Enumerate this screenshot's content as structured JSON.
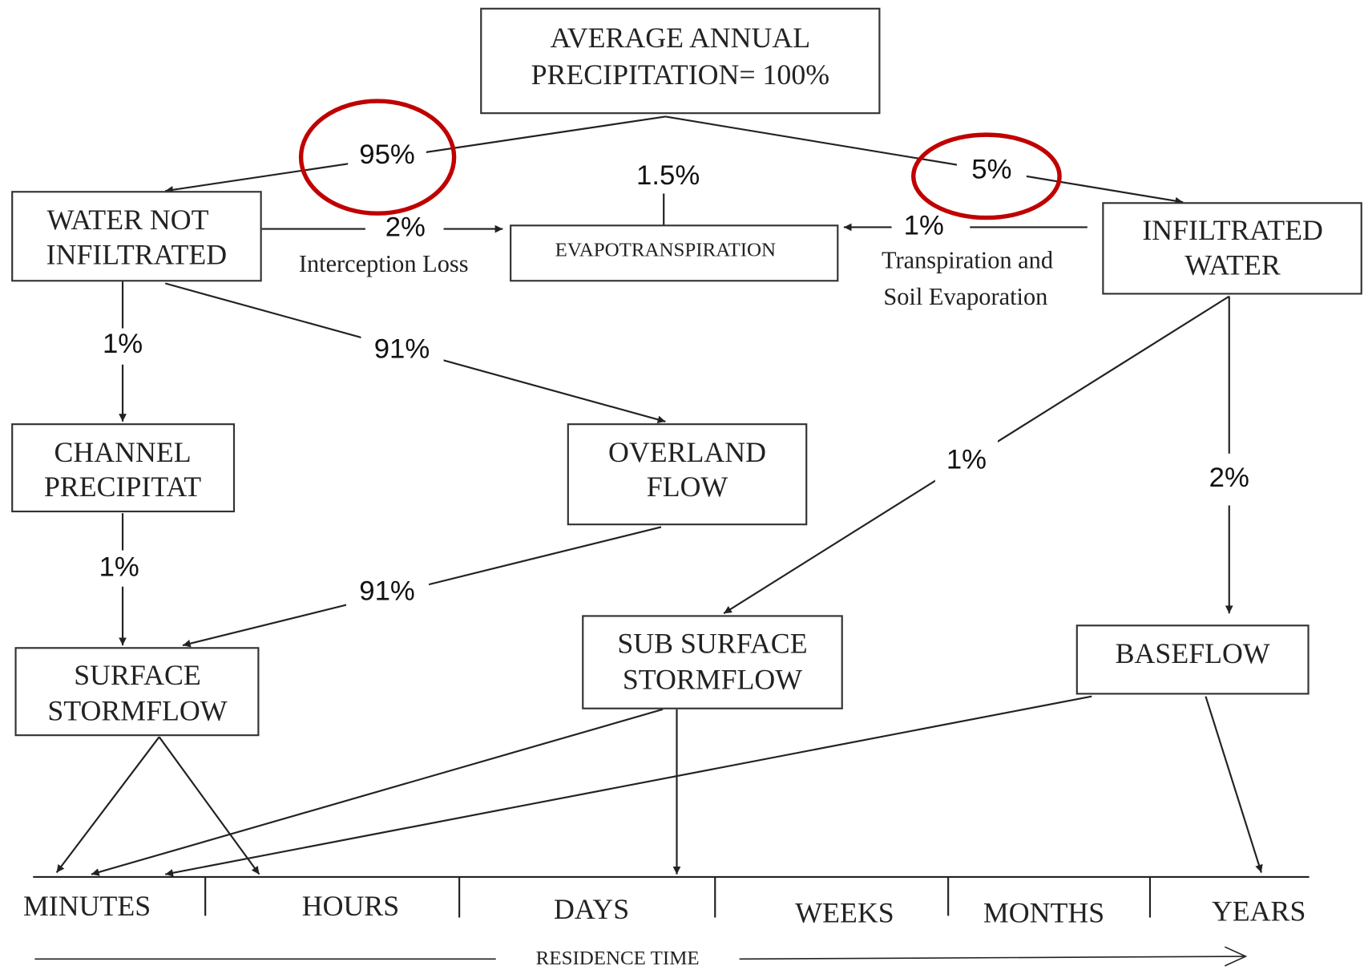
{
  "nodes": [
    {
      "lines": [
        "AVERAGE ANNUAL",
        "PRECIPITATION= 100%"
      ]
    },
    {
      "lines": [
        "WATER NOT",
        "INFILTRATED"
      ]
    },
    {
      "lines": [
        "EVAPOTRANSPIRATION"
      ]
    },
    {
      "lines": [
        "INFILTRATED",
        "WATER"
      ]
    },
    {
      "lines": [
        "CHANNEL",
        "PRECIPITAT"
      ]
    },
    {
      "lines": [
        "OVERLAND",
        "FLOW"
      ]
    },
    {
      "lines": [
        "SUB SURFACE",
        "STORMFLOW"
      ]
    },
    {
      "lines": [
        "BASEFLOW"
      ]
    },
    {
      "lines": [
        "SURFACE",
        "STORMFLOW"
      ]
    }
  ],
  "edges": [
    {
      "label": "95%"
    },
    {
      "label": "5%"
    },
    {
      "label": "1.5%"
    },
    {
      "label": "2%",
      "note": [
        "Interception Loss"
      ]
    },
    {
      "label": "1%",
      "note": [
        "Transpiration and",
        "Soil Evaporation"
      ]
    },
    {
      "label": "1%"
    },
    {
      "label": "91%"
    },
    {
      "label": "1%"
    },
    {
      "label": "91%"
    },
    {
      "label": "1%"
    },
    {
      "label": "2%"
    }
  ],
  "timeline": {
    "labels": [
      "MINUTES",
      "HOURS",
      "DAYS",
      "WEEKS",
      "MONTHS",
      "YEARS"
    ],
    "axis_label": "RESIDENCE TIME"
  }
}
